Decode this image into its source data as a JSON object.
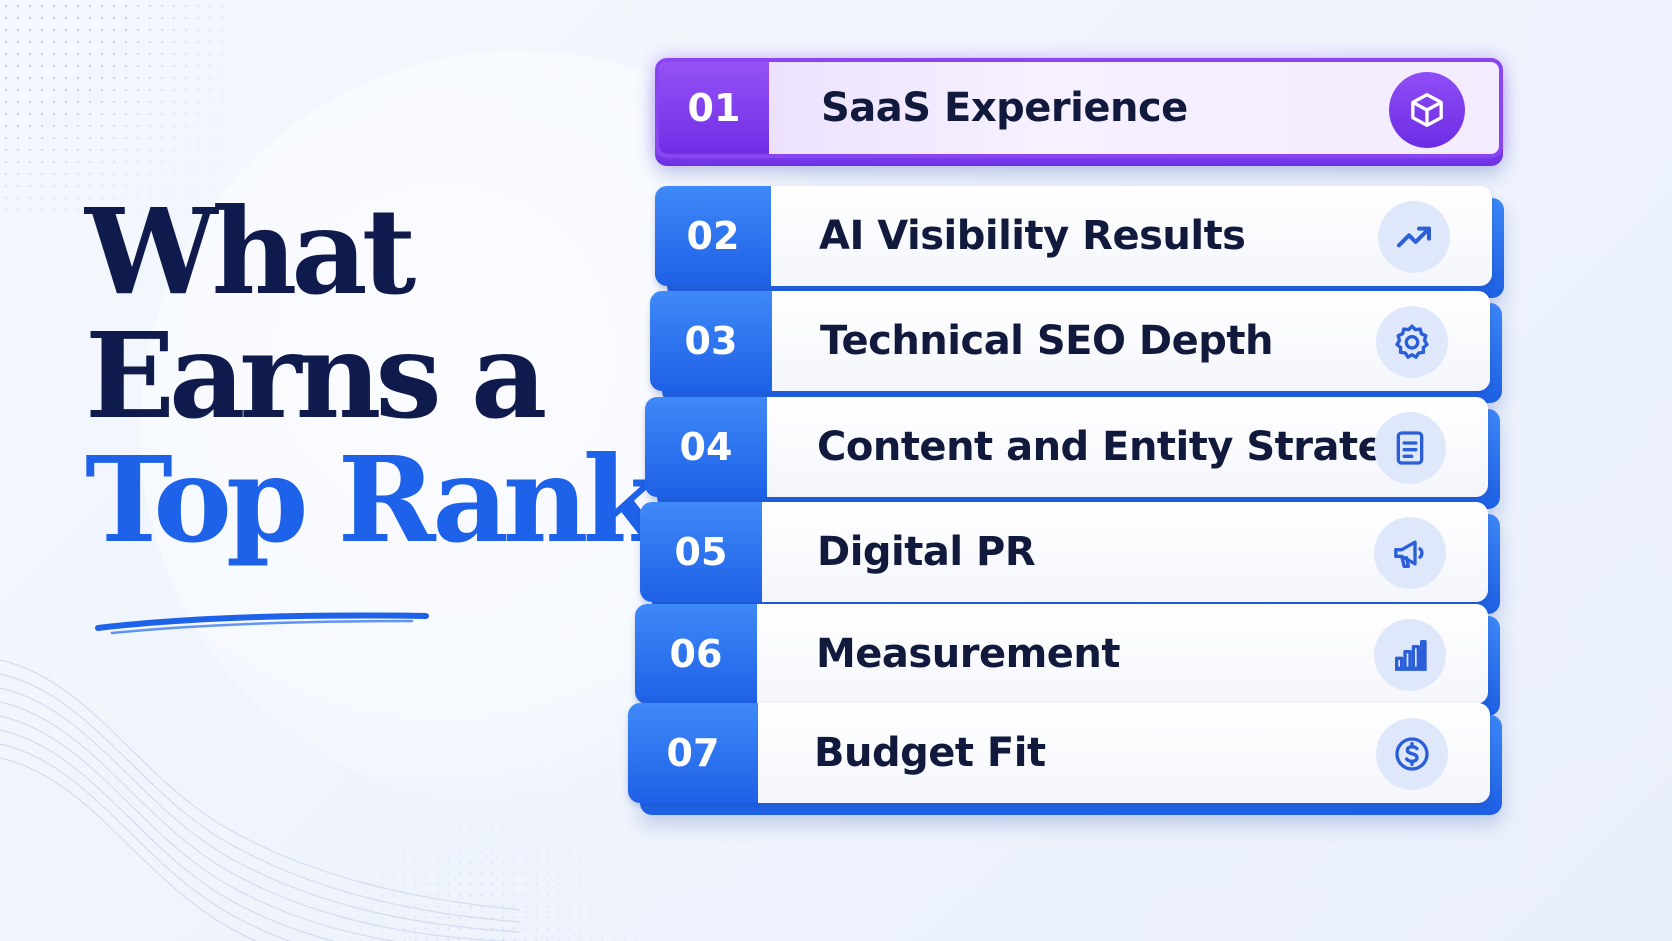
{
  "headline": {
    "line1": "What",
    "line2": "Earns a",
    "line3": "Top Rank"
  },
  "colors": {
    "navy": "#0f1b4c",
    "blue_accent": "#1e62ea",
    "purple_highlight": "#7b3cf0",
    "icon_blue": "#2a5fd8"
  },
  "items": [
    {
      "number": "01",
      "label": "SaaS Experience",
      "icon": "cube-icon",
      "highlighted": true
    },
    {
      "number": "02",
      "label": "AI Visibility Results",
      "icon": "trending-up-icon"
    },
    {
      "number": "03",
      "label": "Technical SEO Depth",
      "icon": "gear-icon"
    },
    {
      "number": "04",
      "label": "Content and Entity Strategy",
      "icon": "document-icon"
    },
    {
      "number": "05",
      "label": "Digital PR",
      "icon": "megaphone-icon"
    },
    {
      "number": "06",
      "label": "Measurement",
      "icon": "bar-chart-icon"
    },
    {
      "number": "07",
      "label": "Budget Fit",
      "icon": "dollar-coin-icon"
    }
  ]
}
